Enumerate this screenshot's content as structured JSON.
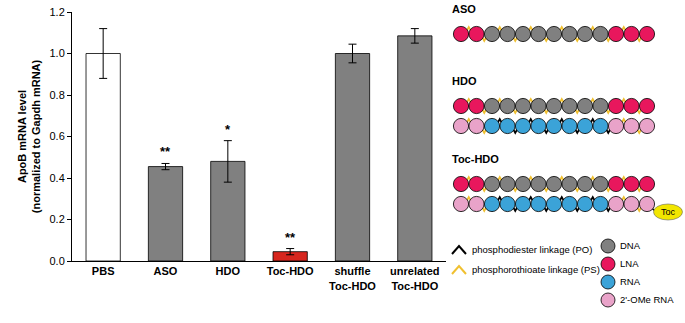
{
  "chart_data": {
    "type": "bar",
    "y_label": [
      "ApoB mRNA level",
      "(normalized to Gapdh mRNA)"
    ],
    "categories": [
      "PBS",
      "ASO",
      "HDO",
      "Toc-HDO",
      "shuffle Toc-HDO",
      "unrelated Toc-HDO"
    ],
    "values": [
      1.0,
      0.455,
      0.48,
      0.045,
      1.0,
      1.085
    ],
    "errors": [
      0.12,
      0.015,
      0.1,
      0.015,
      0.045,
      0.035
    ],
    "significance": [
      null,
      "**",
      "*",
      "**",
      null,
      null
    ],
    "colors": [
      "#ffffff",
      "#808080",
      "#808080",
      "#d7261e",
      "#808080",
      "#808080"
    ],
    "ylim": [
      0,
      1.2
    ],
    "yticks": [
      {
        "value": 0,
        "label": "0.0"
      },
      {
        "value": 0.2,
        "label": "0.2"
      },
      {
        "value": 0.4,
        "label": "0.4"
      },
      {
        "value": 0.6,
        "label": "0.6"
      },
      {
        "value": 0.8,
        "label": "0.8"
      },
      {
        "value": 1.0,
        "label": "1.0"
      },
      {
        "value": 1.2,
        "label": "1.2"
      }
    ],
    "grid": false
  },
  "diagram": {
    "structures": [
      {
        "label": "ASO",
        "strands": [
          {
            "nucleotides": [
              "LNA",
              "LNA",
              "DNA",
              "DNA",
              "DNA",
              "DNA",
              "DNA",
              "DNA",
              "DNA",
              "DNA",
              "LNA",
              "LNA",
              "LNA"
            ],
            "linkages": [
              "PS",
              "PS",
              "PS",
              "PS",
              "PS",
              "PS",
              "PS",
              "PS",
              "PS",
              "PS",
              "PS",
              "PS"
            ]
          }
        ]
      },
      {
        "label": "HDO",
        "strands": [
          {
            "nucleotides": [
              "LNA",
              "LNA",
              "DNA",
              "DNA",
              "DNA",
              "DNA",
              "DNA",
              "DNA",
              "DNA",
              "DNA",
              "LNA",
              "LNA",
              "LNA"
            ],
            "linkages": [
              "PS",
              "PS",
              "PS",
              "PS",
              "PS",
              "PS",
              "PS",
              "PS",
              "PS",
              "PS",
              "PS",
              "PS"
            ]
          },
          {
            "nucleotides": [
              "2'-OMe RNA",
              "2'-OMe RNA",
              "RNA",
              "RNA",
              "RNA",
              "RNA",
              "RNA",
              "RNA",
              "RNA",
              "RNA",
              "2'-OMe RNA",
              "2'-OMe RNA",
              "2'-OMe RNA"
            ],
            "linkages": [
              "PS",
              "PS",
              "PO",
              "PO",
              "PO",
              "PO",
              "PO",
              "PO",
              "PO",
              "PO",
              "PS",
              "PS"
            ]
          }
        ]
      },
      {
        "label": "Toc-HDO",
        "strands": [
          {
            "nucleotides": [
              "LNA",
              "LNA",
              "DNA",
              "DNA",
              "DNA",
              "DNA",
              "DNA",
              "DNA",
              "DNA",
              "DNA",
              "LNA",
              "LNA",
              "LNA"
            ],
            "linkages": [
              "PS",
              "PS",
              "PS",
              "PS",
              "PS",
              "PS",
              "PS",
              "PS",
              "PS",
              "PS",
              "PS",
              "PS"
            ]
          },
          {
            "nucleotides": [
              "2'-OMe RNA",
              "2'-OMe RNA",
              "RNA",
              "RNA",
              "RNA",
              "RNA",
              "RNA",
              "RNA",
              "RNA",
              "RNA",
              "2'-OMe RNA",
              "2'-OMe RNA",
              "2'-OMe RNA"
            ],
            "linkages": [
              "PS",
              "PS",
              "PO",
              "PO",
              "PO",
              "PO",
              "PO",
              "PO",
              "PO",
              "PO",
              "PS",
              "PS"
            ]
          }
        ],
        "conjugate": {
          "label": "Toc",
          "strand": 1,
          "linkage": "PO",
          "color": "#f2e600"
        }
      }
    ],
    "linkage_legend": [
      {
        "name": "PO",
        "label": "phosphodiester linkage (PO)",
        "color": "#000000"
      },
      {
        "name": "PS",
        "label": "phosphorothioate linkage (PS)",
        "color": "#f0c030"
      }
    ],
    "nucleotide_legend": [
      {
        "label": "DNA",
        "color": "#808080"
      },
      {
        "label": "LNA",
        "color": "#e8175d"
      },
      {
        "label": "RNA",
        "color": "#3ba3d8"
      },
      {
        "label": "2'-OMe RNA",
        "color": "#e9a3c9"
      }
    ]
  }
}
